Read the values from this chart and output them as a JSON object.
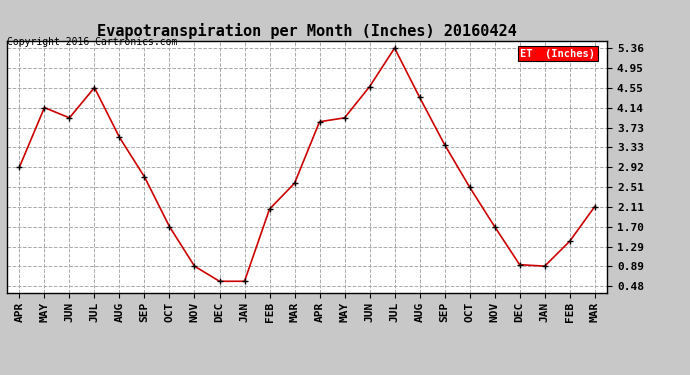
{
  "title": "Evapotranspiration per Month (Inches) 20160424",
  "copyright": "Copyright 2016 Cartronics.com",
  "legend_label": "ET  (Inches)",
  "legend_bg": "#ff0000",
  "legend_text_color": "#ffffff",
  "x_labels": [
    "APR",
    "MAY",
    "JUN",
    "JUL",
    "AUG",
    "SEP",
    "OCT",
    "NOV",
    "DEC",
    "JAN",
    "FEB",
    "MAR",
    "APR",
    "MAY",
    "JUN",
    "JUL",
    "AUG",
    "SEP",
    "OCT",
    "NOV",
    "DEC",
    "JAN",
    "FEB",
    "MAR"
  ],
  "y_values": [
    2.92,
    4.14,
    3.93,
    4.55,
    3.53,
    2.72,
    1.7,
    0.89,
    0.58,
    0.58,
    2.06,
    2.59,
    3.85,
    3.93,
    4.57,
    5.36,
    4.35,
    3.38,
    2.51,
    1.7,
    0.92,
    0.89,
    1.4,
    2.11
  ],
  "yticks": [
    0.48,
    0.89,
    1.29,
    1.7,
    2.11,
    2.51,
    2.92,
    3.33,
    3.73,
    4.14,
    4.55,
    4.95,
    5.36
  ],
  "line_color": "#cc0000",
  "marker_color": "#000000",
  "fig_bg_color": "#c8c8c8",
  "plot_bg_color": "#ffffff",
  "grid_color": "#aaaaaa",
  "title_fontsize": 11,
  "copyright_fontsize": 7,
  "tick_fontsize": 8,
  "ylim_min": 0.35,
  "ylim_max": 5.5
}
